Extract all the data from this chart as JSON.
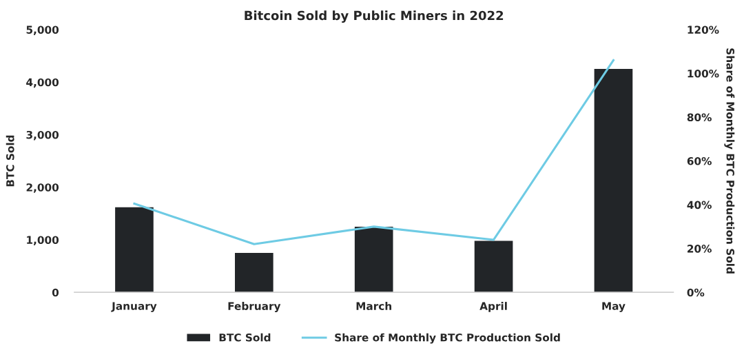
{
  "chart_data": {
    "type": "bar",
    "title": "Bitcoin Sold by Public Miners in 2022",
    "ylabel": "BTC Sold",
    "y2label": "Share of Monthly BTC Production Sold",
    "categories": [
      "January",
      "February",
      "March",
      "April",
      "May"
    ],
    "series": [
      {
        "name": "BTC Sold",
        "color": "#222528",
        "values": [
          1620,
          750,
          1250,
          980,
          4250
        ]
      },
      {
        "name": "Share of Monthly BTC Production Sold",
        "type": "line",
        "axis": "y2",
        "color": "#6ecbe4",
        "values": [
          40.5,
          22,
          30,
          24,
          106
        ]
      }
    ],
    "ylim": [
      0,
      5000
    ],
    "yticks": [
      {
        "value": 0,
        "label": "0"
      },
      {
        "value": 1000,
        "label": "1,000"
      },
      {
        "value": 2000,
        "label": "2,000"
      },
      {
        "value": 3000,
        "label": "3,000"
      },
      {
        "value": 4000,
        "label": "4,000"
      },
      {
        "value": 5000,
        "label": "5,000"
      }
    ],
    "y2lim": [
      0,
      120
    ],
    "y2ticks": [
      {
        "value": 0,
        "label": "0%"
      },
      {
        "value": 20,
        "label": "20%"
      },
      {
        "value": 40,
        "label": "40%"
      },
      {
        "value": 60,
        "label": "60%"
      },
      {
        "value": 80,
        "label": "80%"
      },
      {
        "value": 100,
        "label": "100%"
      },
      {
        "value": 120,
        "label": "120%"
      }
    ],
    "legend": "bottom",
    "marker": "none",
    "line_style": "solid"
  }
}
